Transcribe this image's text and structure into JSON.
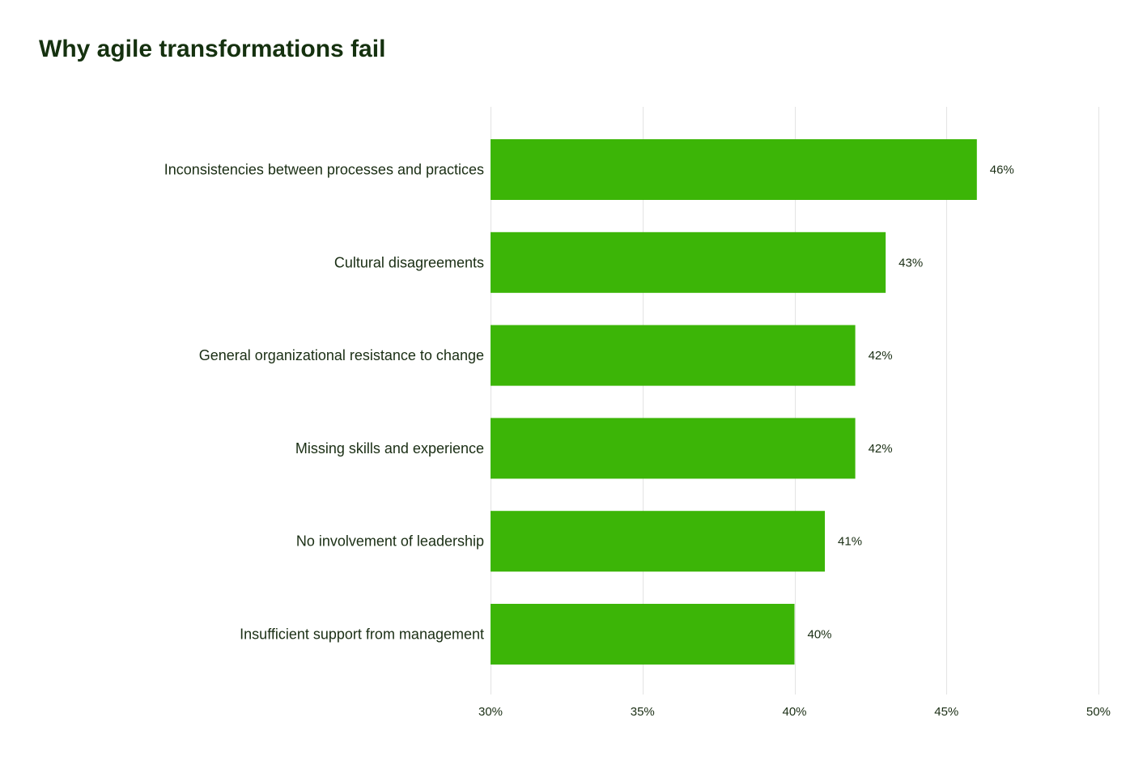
{
  "chart_data": {
    "type": "bar",
    "orientation": "horizontal",
    "title": "Why agile transformations fail",
    "categories": [
      "Inconsistencies between processes and practices",
      "Cultural disagreements",
      "General organizational resistance to change",
      "Missing skills and experience",
      "No involvement of leadership",
      "Insufficient support from management"
    ],
    "values": [
      46,
      43,
      42,
      42,
      41,
      40
    ],
    "value_labels": [
      "46%",
      "43%",
      "42%",
      "42%",
      "41%",
      "40%"
    ],
    "xlim": [
      30,
      50
    ],
    "x_ticks": [
      30,
      35,
      40,
      45,
      50
    ],
    "x_tick_labels": [
      "30%",
      "35%",
      "40%",
      "45%",
      "50%"
    ],
    "xlabel": "",
    "ylabel": "",
    "grid": true,
    "bar_color": "#3cb507",
    "text_color": "#1a2e14"
  }
}
